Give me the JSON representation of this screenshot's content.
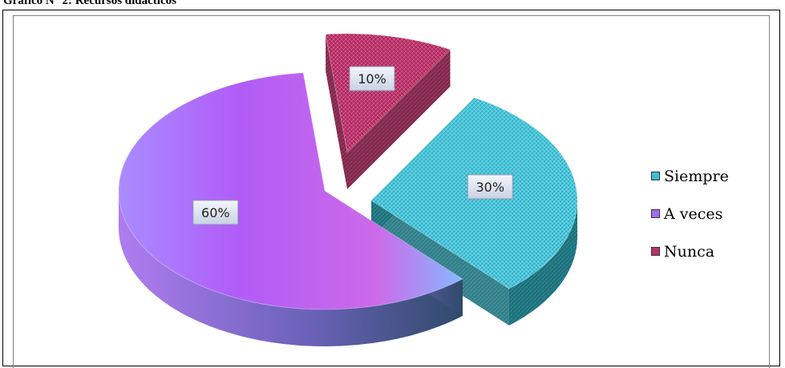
{
  "caption": "Gráfico N° 2: Recursos didácticos",
  "chart_data": {
    "type": "pie",
    "title": "",
    "categories": [
      "Siempre",
      "A veces",
      "Nunca"
    ],
    "values": [
      30,
      60,
      10
    ],
    "data_labels": [
      "30%",
      "60%",
      "10%"
    ],
    "colors": [
      "#3cbfd8",
      "#a66bf5",
      "#b8336a"
    ],
    "legend": {
      "position": "right",
      "entries": [
        "Siempre",
        "A veces",
        "Nunca"
      ]
    },
    "style": "3d-exploded"
  }
}
